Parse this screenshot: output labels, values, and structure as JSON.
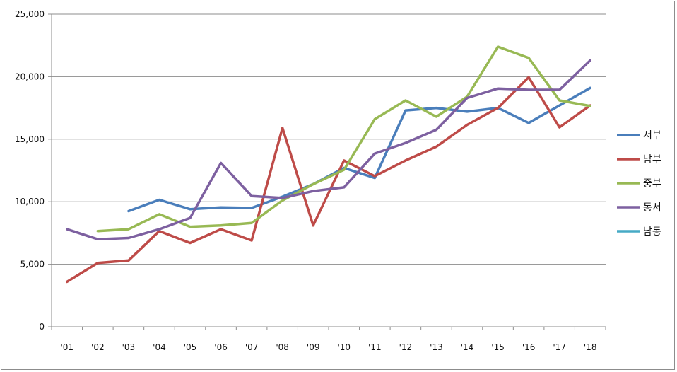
{
  "chart_data": {
    "type": "line",
    "title": "",
    "xlabel": "",
    "ylabel": "",
    "categories": [
      "'01",
      "'02",
      "'03",
      "'04",
      "'05",
      "'06",
      "'07",
      "'08",
      "'09",
      "'10",
      "'11",
      "'12",
      "'13",
      "'14",
      "'15",
      "'16",
      "'17",
      "'18"
    ],
    "ylim": [
      0,
      25000
    ],
    "yticks": [
      0,
      5000,
      10000,
      15000,
      20000,
      25000
    ],
    "ytick_labels": [
      "0",
      "5,000",
      "10,000",
      "15,000",
      "20,000",
      "25,000"
    ],
    "grid": "horizontal",
    "legend_position": "right",
    "series": [
      {
        "name": "서부",
        "color": "#4a7ebb",
        "values": [
          null,
          null,
          9250,
          10150,
          9400,
          9550,
          9500,
          10400,
          11400,
          12700,
          11900,
          17300,
          17500,
          17200,
          17500,
          16300,
          17700,
          19100
        ]
      },
      {
        "name": "남부",
        "color": "#be4b48",
        "values": [
          3600,
          5100,
          5300,
          7650,
          6700,
          7800,
          6900,
          15900,
          8100,
          13300,
          12050,
          13300,
          14400,
          16150,
          17500,
          19950,
          15950,
          17700
        ]
      },
      {
        "name": "중부",
        "color": "#98b954",
        "values": [
          null,
          7650,
          7800,
          9000,
          8000,
          8100,
          8300,
          10100,
          11400,
          12550,
          16600,
          18100,
          16800,
          18400,
          22400,
          21500,
          18100,
          17650
        ]
      },
      {
        "name": "동서",
        "color": "#7d60a0",
        "values": [
          7800,
          7000,
          7100,
          7800,
          8700,
          13100,
          10450,
          10300,
          10850,
          11150,
          13850,
          14700,
          15750,
          18300,
          19050,
          18950,
          18950,
          21300
        ]
      },
      {
        "name": "남동",
        "color": "#46aac5",
        "values": [
          null,
          null,
          null,
          null,
          null,
          null,
          null,
          null,
          null,
          null,
          null,
          null,
          null,
          null,
          null,
          null,
          null,
          null
        ]
      }
    ]
  }
}
